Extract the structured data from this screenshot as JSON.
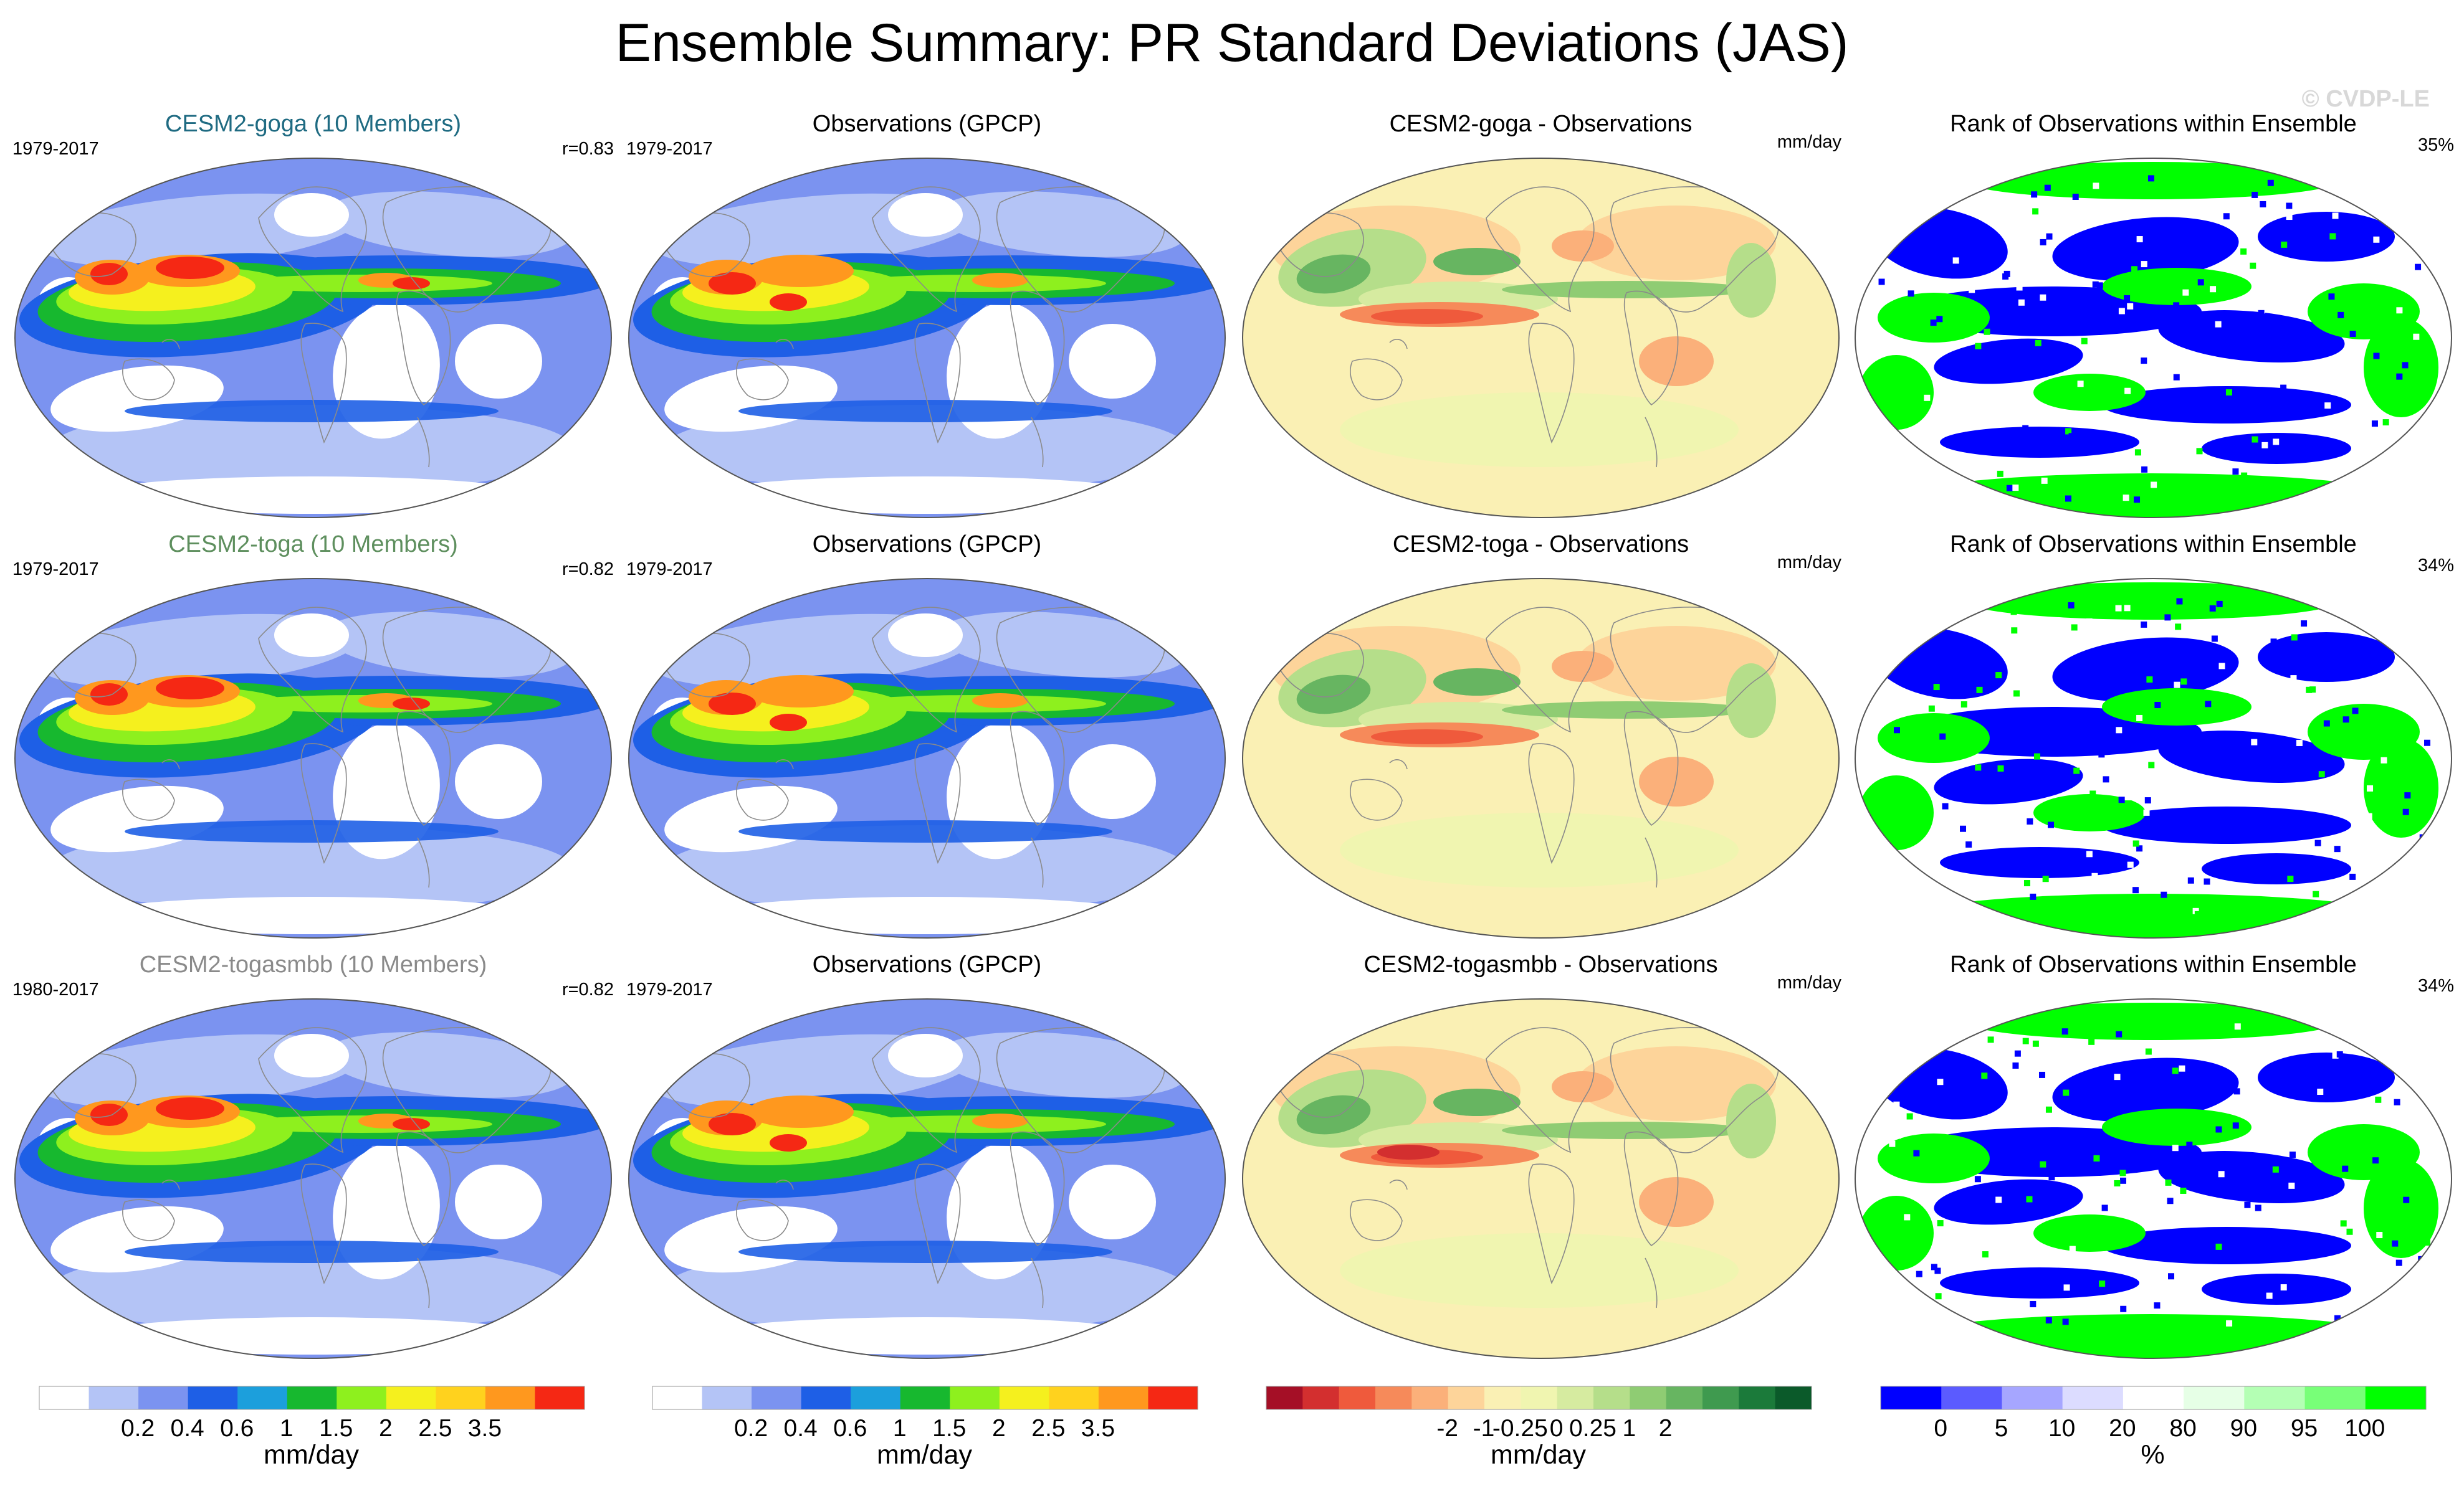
{
  "title": "Ensemble Summary: PR Standard Deviations (JAS)",
  "watermark": "© CVDP-LE",
  "rows": [
    {
      "model": {
        "title": "CESM2-goga (10 Members)",
        "title_color": "#1f6b82",
        "period": "1979-2017",
        "corr": "r=0.83"
      },
      "obs": {
        "title": "Observations (GPCP)",
        "period": "1979-2017"
      },
      "diff": {
        "title": "CESM2-goga - Observations",
        "units": "mm/day"
      },
      "rank": {
        "title": "Rank of Observations within Ensemble",
        "pct": "35%"
      }
    },
    {
      "model": {
        "title": "CESM2-toga (10 Members)",
        "title_color": "#5e8f5e",
        "period": "1979-2017",
        "corr": "r=0.82"
      },
      "obs": {
        "title": "Observations (GPCP)",
        "period": "1979-2017"
      },
      "diff": {
        "title": "CESM2-toga - Observations",
        "units": "mm/day"
      },
      "rank": {
        "title": "Rank of Observations within Ensemble",
        "pct": "34%"
      }
    },
    {
      "model": {
        "title": "CESM2-togasmbb (10 Members)",
        "title_color": "#8a8a8a",
        "period": "1980-2017",
        "corr": "r=0.82"
      },
      "obs": {
        "title": "Observations (GPCP)",
        "period": "1979-2017"
      },
      "diff": {
        "title": "CESM2-togasmbb - Observations",
        "units": "mm/day"
      },
      "rank": {
        "title": "Rank of Observations within Ensemble",
        "pct": "34%"
      }
    }
  ],
  "colorbars": [
    {
      "name": "pr-std",
      "units": "mm/day",
      "colors": [
        "#ffffff",
        "#b4c4f6",
        "#7b93f0",
        "#1e5fe6",
        "#1c9fdc",
        "#17b82f",
        "#8ef01e",
        "#f5f01e",
        "#ffd21e",
        "#ff981e",
        "#f52814"
      ],
      "ticks": [
        "0.2",
        "0.4",
        "0.6",
        "1",
        "1.5",
        "2",
        "2.5",
        "3.5"
      ]
    },
    {
      "name": "pr-std-obs",
      "units": "mm/day",
      "colors": [
        "#ffffff",
        "#b4c4f6",
        "#7b93f0",
        "#1e5fe6",
        "#1c9fdc",
        "#17b82f",
        "#8ef01e",
        "#f5f01e",
        "#ffd21e",
        "#ff981e",
        "#f52814"
      ],
      "ticks": [
        "0.2",
        "0.4",
        "0.6",
        "1",
        "1.5",
        "2",
        "2.5",
        "3.5"
      ]
    },
    {
      "name": "diff",
      "units": "mm/day",
      "colors": [
        "#a50f26",
        "#d32f2f",
        "#ef5a3c",
        "#f68a5a",
        "#fbb07a",
        "#fdd49a",
        "#faf0b4",
        "#f0f5b0",
        "#d6ebA0",
        "#b5de8a",
        "#8fcc73",
        "#67b561",
        "#3f9a4f",
        "#1b7a3a",
        "#0b5a2a"
      ],
      "ticks": [
        "-2",
        "-1",
        "-0.25",
        "0",
        "0.25",
        "1",
        "2"
      ]
    },
    {
      "name": "rank",
      "units": "%",
      "colors": [
        "#0000ff",
        "#5b5bff",
        "#a6a6ff",
        "#dcdcff",
        "#ffffff",
        "#e6ffe6",
        "#b4ffb4",
        "#78ff78",
        "#00ff00"
      ],
      "ticks": [
        "0",
        "5",
        "10",
        "20",
        "80",
        "90",
        "95",
        "100"
      ]
    }
  ]
}
